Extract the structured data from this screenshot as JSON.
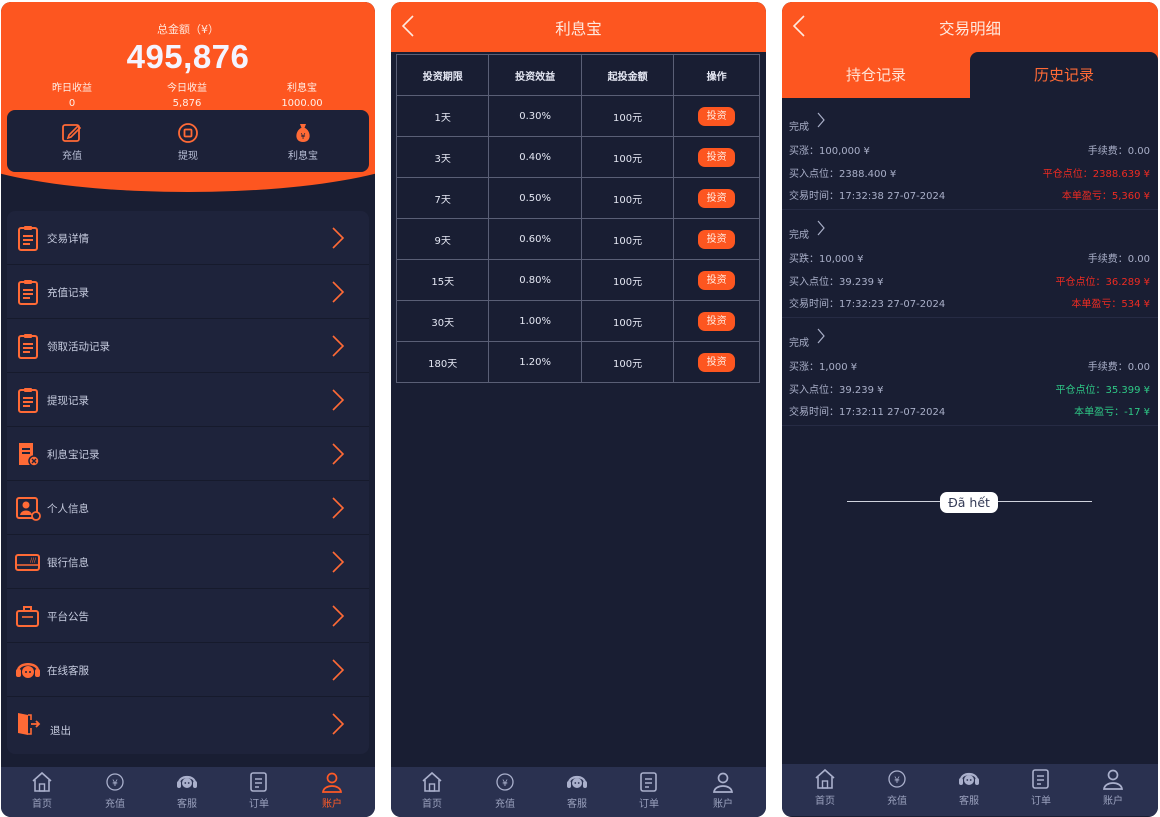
{
  "colors": {
    "accent": "#fd5620",
    "background": "#191e33",
    "loss_red": "#ee2b22",
    "gain_green": "#2ec886"
  },
  "tabbar": [
    {
      "label": "首页",
      "icon": "home-icon"
    },
    {
      "label": "充值",
      "icon": "yen-coin-icon"
    },
    {
      "label": "客服",
      "icon": "headset-icon"
    },
    {
      "label": "订单",
      "icon": "document-icon"
    },
    {
      "label": "账户",
      "icon": "user-icon"
    }
  ],
  "account": {
    "total_label": "总金额（¥）",
    "total_value": "495,876",
    "stats": [
      {
        "label": "昨日收益",
        "value": "0"
      },
      {
        "label": "今日收益",
        "value": "5,876"
      },
      {
        "label": "利息宝",
        "value": "1000.00"
      }
    ],
    "quick_actions": [
      {
        "label": "充值",
        "icon": "edit-icon"
      },
      {
        "label": "提现",
        "icon": "withdraw-icon"
      },
      {
        "label": "利息宝",
        "icon": "money-bag-icon"
      }
    ],
    "menu": [
      {
        "label": "交易详情",
        "icon": "clipboard-icon"
      },
      {
        "label": "充值记录",
        "icon": "clipboard-icon"
      },
      {
        "label": "领取活动记录",
        "icon": "clipboard-icon"
      },
      {
        "label": "提现记录",
        "icon": "clipboard-icon"
      },
      {
        "label": "利息宝记录",
        "icon": "ledger-icon"
      },
      {
        "label": "个人信息",
        "icon": "id-card-icon"
      },
      {
        "label": "银行信息",
        "icon": "bank-card-icon"
      },
      {
        "label": "平台公告",
        "icon": "briefcase-icon"
      },
      {
        "label": "在线客服",
        "icon": "headset-icon"
      },
      {
        "label": "退出",
        "icon": "logout-icon"
      }
    ]
  },
  "interest": {
    "title": "利息宝",
    "headers": [
      "投资期限",
      "投资效益",
      "起投金额",
      "操作"
    ],
    "rows": [
      {
        "term": "1天",
        "rate": "0.30%",
        "min": "100元"
      },
      {
        "term": "3天",
        "rate": "0.40%",
        "min": "100元"
      },
      {
        "term": "7天",
        "rate": "0.50%",
        "min": "100元"
      },
      {
        "term": "9天",
        "rate": "0.60%",
        "min": "100元"
      },
      {
        "term": "15天",
        "rate": "0.80%",
        "min": "100元"
      },
      {
        "term": "30天",
        "rate": "1.00%",
        "min": "100元"
      },
      {
        "term": "180天",
        "rate": "1.20%",
        "min": "100元"
      }
    ],
    "invest_label": "投资"
  },
  "trades": {
    "title": "交易明细",
    "tabs": [
      "持仓记录",
      "历史记录"
    ],
    "records": [
      {
        "status": "完成",
        "direction": "买涨：100,000 ¥",
        "fee": "手续费：0.00",
        "buy": "买入点位：2388.400 ¥",
        "close": "平仓点位：2388.639 ¥",
        "time": "交易时间：17:32:38 27-07-2024",
        "pnl": "本单盈亏：5,360 ¥",
        "tone": "red"
      },
      {
        "status": "完成",
        "direction": "买跌：10,000 ¥",
        "fee": "手续费：0.00",
        "buy": "买入点位：39.239 ¥",
        "close": "平仓点位：36.289 ¥",
        "time": "交易时间：17:32:23 27-07-2024",
        "pnl": "本单盈亏：534 ¥",
        "tone": "red"
      },
      {
        "status": "完成",
        "direction": "买涨：1,000 ¥",
        "fee": "手续费：0.00",
        "buy": "买入点位：39.239 ¥",
        "close": "平仓点位：35.399 ¥",
        "time": "交易时间：17:32:11 27-07-2024",
        "pnl": "本单盈亏：-17 ¥",
        "tone": "green"
      }
    ],
    "end_text": "Đã hết"
  }
}
